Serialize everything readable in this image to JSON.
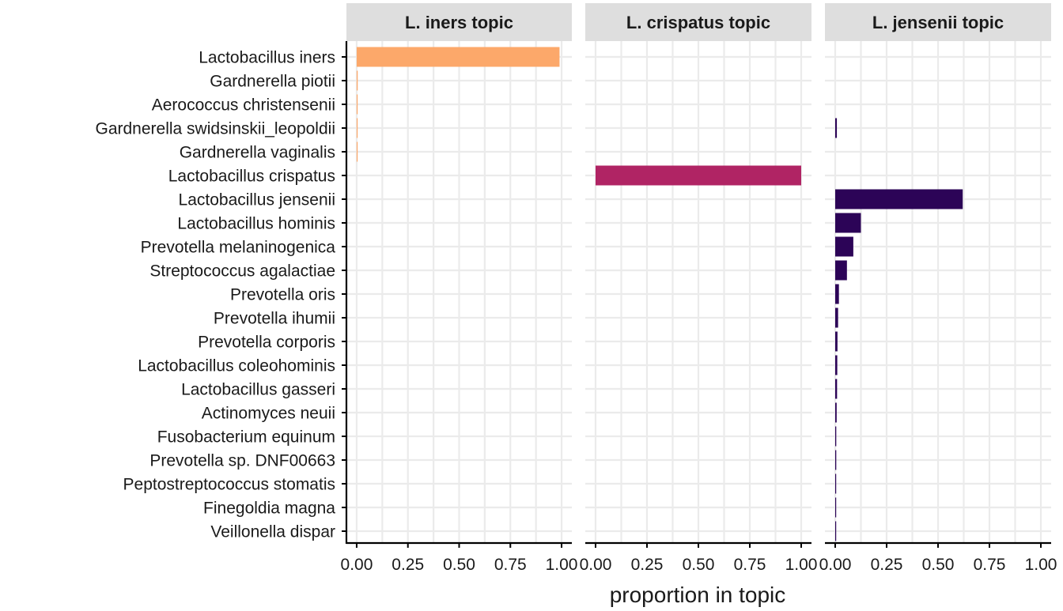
{
  "chart_data": {
    "type": "bar",
    "orientation": "horizontal",
    "facets": [
      "L. iners topic",
      "L. crispatus topic",
      "L. jensenii topic"
    ],
    "categories": [
      "Lactobacillus iners",
      "Gardnerella piotii",
      "Aerococcus christensenii",
      "Gardnerella swidsinskii_leopoldii",
      "Gardnerella vaginalis",
      "Lactobacillus crispatus",
      "Lactobacillus jensenii",
      "Lactobacillus hominis",
      "Prevotella melaninogenica",
      "Streptococcus agalactiae",
      "Prevotella oris",
      "Prevotella ihumii",
      "Prevotella corporis",
      "Lactobacillus coleohominis",
      "Lactobacillus gasseri",
      "Actinomyces neuii",
      "Fusobacterium equinum",
      "Prevotella sp. DNF00663",
      "Peptostreptococcus stomatis",
      "Finegoldia magna",
      "Veillonella dispar"
    ],
    "series": [
      {
        "facet": "L. iners topic",
        "color": "#FCA86A",
        "values": [
          0.99,
          0.005,
          0.004,
          0.004,
          0.003,
          0,
          0,
          0,
          0,
          0,
          0,
          0,
          0,
          0,
          0,
          0,
          0,
          0,
          0,
          0,
          0
        ]
      },
      {
        "facet": "L. crispatus topic",
        "color": "#B02464",
        "values": [
          0,
          0,
          0,
          0,
          0,
          1.0,
          0,
          0,
          0,
          0,
          0,
          0,
          0,
          0,
          0,
          0,
          0,
          0,
          0,
          0,
          0
        ]
      },
      {
        "facet": "L. jensenii topic",
        "color": "#2C0457",
        "values": [
          0,
          0,
          0,
          0.008,
          0,
          0,
          0.62,
          0.125,
          0.088,
          0.057,
          0.018,
          0.014,
          0.011,
          0.01,
          0.009,
          0.007,
          0.005,
          0.005,
          0.004,
          0.003,
          0.003
        ]
      }
    ],
    "x_ticks": [
      "0.00",
      "0.25",
      "0.50",
      "0.75",
      "1.00"
    ],
    "xlim": [
      -0.05,
      1.05
    ],
    "xlabel": "proportion in topic",
    "ylabel": "",
    "title": "",
    "grid": true,
    "legend": "none",
    "colors": {
      "panel_background": "#FFFFFF",
      "grid": "#EBEBEB",
      "strip_background": "#DEDEDE",
      "axis_line": "#000000"
    }
  }
}
